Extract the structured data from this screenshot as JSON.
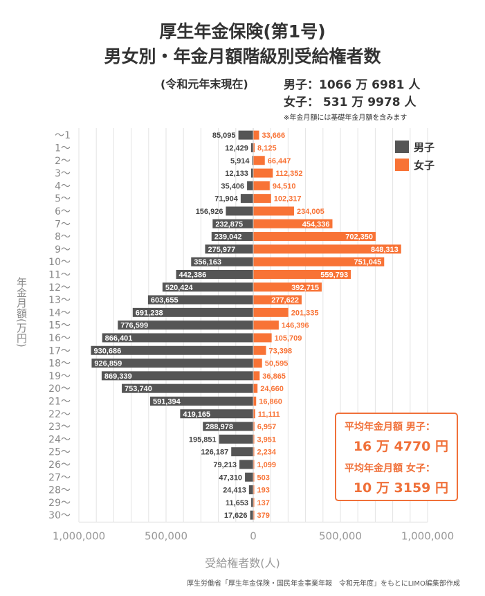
{
  "title_line1": "厚生年金保険(第1号)",
  "title_line2": "男女別・年金月額階級別受給権者数",
  "as_of": "(令和元年末現在)",
  "male_total": "男子：1066 万 6981 人",
  "female_total": "女子：  531 万 9978 人",
  "note": "※年金月額には基礎年金月額を含みます",
  "source": "厚生労働省「厚生年金保険・国民年金事業年報　令和元年度」をもとにLIMO編集部作成",
  "average_box": {
    "male_label": "平均年金月額 男子：",
    "male_value": "16 万 4770 円",
    "female_label": "平均年金月額 女子：",
    "female_value": "10 万 3159 円"
  },
  "colors": {
    "male": "#555555",
    "female": "#f87336",
    "grid": "#e3e3e3"
  },
  "chart_data": {
    "type": "bar",
    "orientation": "horizontal-diverging",
    "xlabel": "受給権者数(人)",
    "ylabel": "年金月額(万円)",
    "xlim": [
      -1000000,
      1000000
    ],
    "x_tick_labels": [
      "1,000,000",
      "500,000",
      "0",
      "500,000",
      "1,000,000"
    ],
    "x_ticks": [
      -1000000,
      -500000,
      0,
      500000,
      1000000
    ],
    "grid": true,
    "legend_position": "top-right",
    "categories": [
      "〜1",
      "1〜",
      "2〜",
      "3〜",
      "4〜",
      "5〜",
      "6〜",
      "7〜",
      "8〜",
      "9〜",
      "10〜",
      "11〜",
      "12〜",
      "13〜",
      "14〜",
      "15〜",
      "16〜",
      "17〜",
      "18〜",
      "19〜",
      "20〜",
      "21〜",
      "22〜",
      "23〜",
      "24〜",
      "25〜",
      "26〜",
      "27〜",
      "28〜",
      "29〜",
      "30〜"
    ],
    "series": [
      {
        "name": "男子",
        "side": "left",
        "values": [
          85095,
          12429,
          5914,
          12133,
          35406,
          71904,
          156926,
          232875,
          239042,
          275977,
          356163,
          442386,
          520424,
          603655,
          691238,
          776599,
          866401,
          930686,
          926859,
          869339,
          753740,
          591394,
          419165,
          288978,
          195851,
          126187,
          79213,
          47310,
          24413,
          11653,
          17626
        ]
      },
      {
        "name": "女子",
        "side": "right",
        "values": [
          33666,
          8125,
          66447,
          112352,
          94510,
          102317,
          234005,
          454336,
          702350,
          848313,
          751045,
          559793,
          392715,
          277622,
          201335,
          146396,
          105709,
          73398,
          50595,
          36865,
          24660,
          16860,
          11111,
          6957,
          3951,
          2234,
          1099,
          503,
          193,
          137,
          379
        ]
      }
    ]
  }
}
